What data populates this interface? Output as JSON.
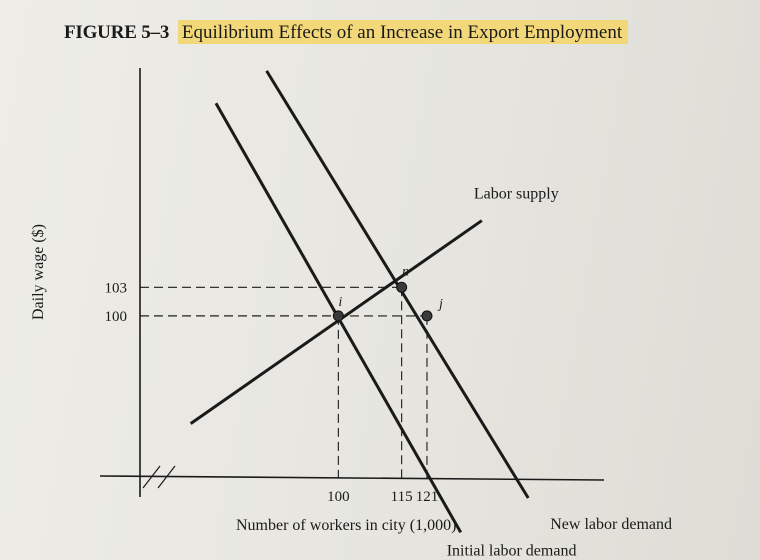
{
  "figure": {
    "label": "FIGURE 5–3",
    "title": "Equilibrium Effects of an Increase in Export Employment"
  },
  "chart_data": {
    "type": "line",
    "xlabel": "Number of workers in city (1,000)",
    "ylabel": "Daily wage ($)",
    "xticks": [
      100,
      115,
      121
    ],
    "yticks": [
      100,
      103
    ],
    "xlim": [
      53,
      162
    ],
    "ylim": [
      83,
      126
    ],
    "axis_break": true,
    "series": [
      {
        "name": "Labor supply",
        "x": [
          65,
          134
        ],
        "y": [
          88.7,
          110.0
        ]
      },
      {
        "name": "Initial labor demand",
        "x": [
          71,
          129
        ],
        "y": [
          122.3,
          77.3
        ]
      },
      {
        "name": "New labor demand",
        "x": [
          83,
          145
        ],
        "y": [
          125.7,
          80.9
        ]
      }
    ],
    "points": [
      {
        "label": "i",
        "x": 100,
        "y": 100
      },
      {
        "label": "n",
        "x": 115,
        "y": 103
      },
      {
        "label": "j",
        "x": 121,
        "y": 100
      }
    ],
    "colors": {
      "line": "#1a1a1a",
      "highlight": "#f3d87a"
    }
  }
}
